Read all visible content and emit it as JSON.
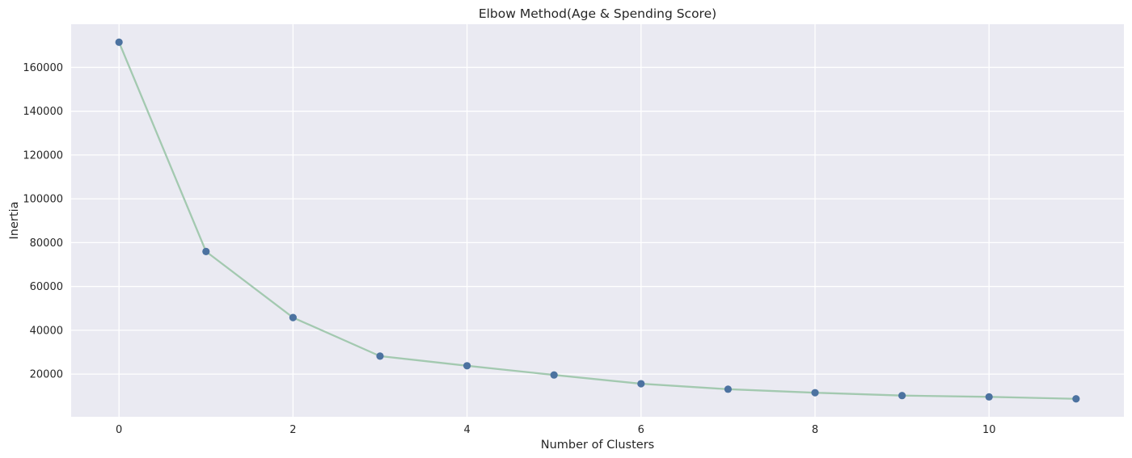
{
  "chart_data": {
    "type": "line",
    "title": "Elbow Method(Age & Spending Score)",
    "xlabel": "Number of Clusters",
    "ylabel": "Inertia",
    "x": [
      0,
      1,
      2,
      3,
      4,
      5,
      6,
      7,
      8,
      9,
      10,
      11
    ],
    "series": [
      {
        "values": [
          171500,
          75950,
          45800,
          28200,
          23800,
          19600,
          15600,
          13100,
          11500,
          10200,
          9600,
          8700
        ]
      }
    ],
    "xticks": [
      0,
      2,
      4,
      6,
      8,
      10
    ],
    "yticks": [
      20000,
      40000,
      60000,
      80000,
      100000,
      120000,
      140000,
      160000
    ],
    "xtick_labels": [
      "0",
      "2",
      "4",
      "6",
      "8",
      "10"
    ],
    "ytick_labels": [
      "20000",
      "40000",
      "60000",
      "80000",
      "100000",
      "120000",
      "140000",
      "160000"
    ],
    "xlim": [
      -0.55,
      11.55
    ],
    "ylim": [
      500,
      179700
    ],
    "grid": true,
    "legend": false,
    "colors": {
      "background": "#eaeaf2",
      "grid": "#ffffff",
      "line": "#a3c9b0",
      "marker": "#4c72a0",
      "text": "#262626"
    }
  }
}
